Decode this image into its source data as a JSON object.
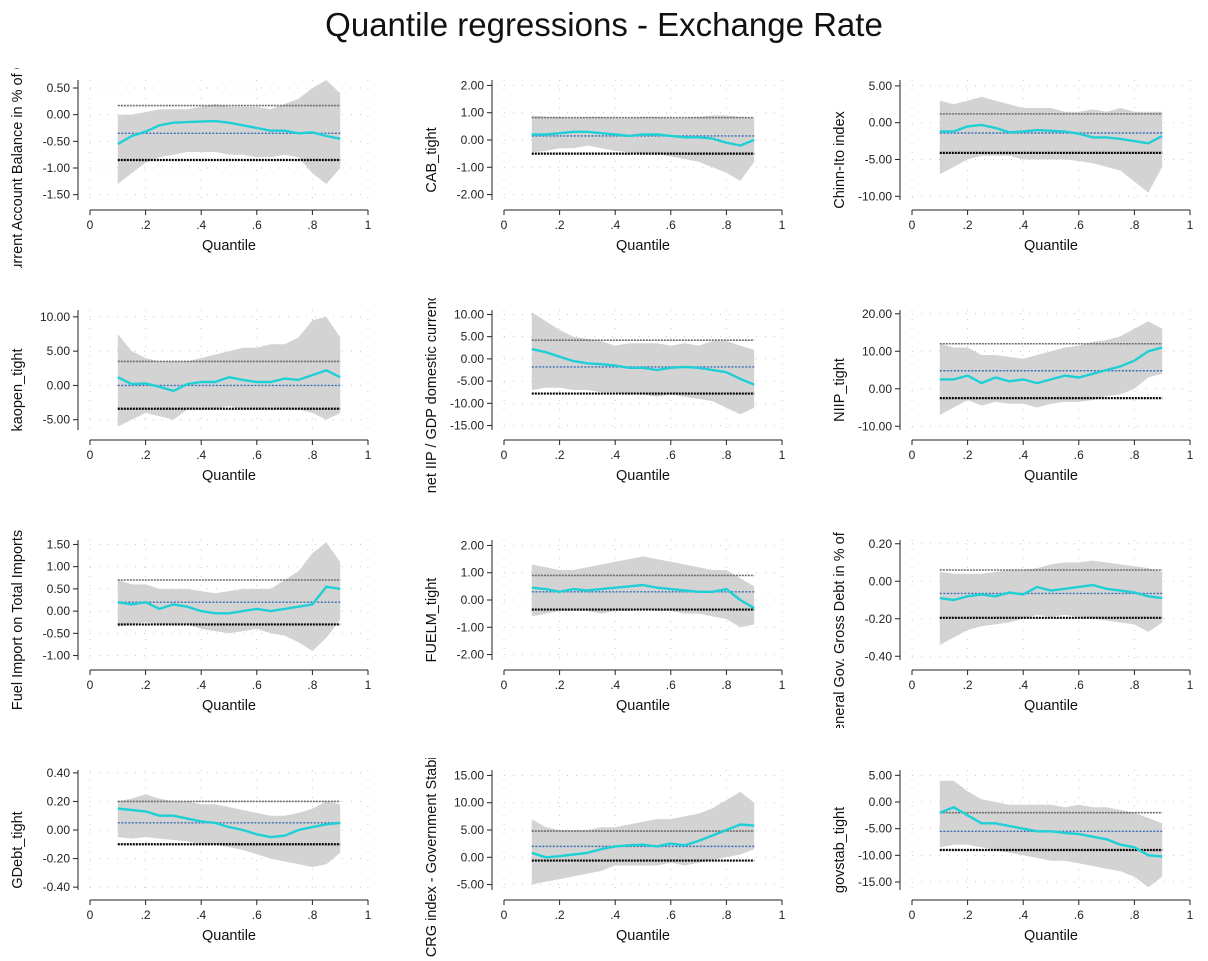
{
  "title": "Quantile regressions - Exchange Rate",
  "colors": {
    "band": "#d3d3d3",
    "estimate": "#1fcfd6",
    "ols_ci_upper": "#6e6e6e",
    "ols_coef": "#3a6fb5",
    "ols_ci_lower": "#000000",
    "grid": "#c8c8c8"
  },
  "chart_data": [
    {
      "type": "area",
      "xlabel": "Quantile",
      "ylabel": "Current Account Balance in % of GDP",
      "xticks": [
        "0",
        ".2",
        ".4",
        ".6",
        ".8",
        "1"
      ],
      "yticks": [
        "0.50",
        "0.00",
        "-0.50",
        "-1.00",
        "-1.50"
      ],
      "xlim": [
        0,
        1
      ],
      "ylim": [
        -1.6,
        0.65
      ],
      "hlines": {
        "ci_upper": 0.17,
        "coef": -0.35,
        "ci_lower": -0.85
      },
      "x": [
        0.1,
        0.15,
        0.2,
        0.25,
        0.3,
        0.35,
        0.4,
        0.45,
        0.5,
        0.55,
        0.6,
        0.65,
        0.7,
        0.75,
        0.8,
        0.85,
        0.9
      ],
      "estimate": [
        -0.55,
        -0.4,
        -0.32,
        -0.2,
        -0.15,
        -0.14,
        -0.13,
        -0.12,
        -0.15,
        -0.2,
        -0.25,
        -0.3,
        -0.3,
        -0.35,
        -0.33,
        -0.4,
        -0.45
      ],
      "band_upper": [
        0.0,
        0.0,
        0.05,
        0.1,
        0.1,
        0.1,
        0.15,
        0.2,
        0.15,
        0.15,
        0.15,
        0.1,
        0.2,
        0.3,
        0.5,
        0.65,
        0.4
      ],
      "band_lower": [
        -1.3,
        -1.1,
        -0.9,
        -0.8,
        -0.75,
        -0.7,
        -0.7,
        -0.7,
        -0.75,
        -0.75,
        -0.8,
        -0.8,
        -0.75,
        -0.8,
        -1.1,
        -1.3,
        -1.0
      ]
    },
    {
      "type": "area",
      "xlabel": "Quantile",
      "ylabel": "CAB_tight",
      "xticks": [
        "0",
        ".2",
        ".4",
        ".6",
        ".8",
        "1"
      ],
      "yticks": [
        "2.00",
        "1.00",
        "0.00",
        "-1.00",
        "-2.00"
      ],
      "xlim": [
        0,
        1
      ],
      "ylim": [
        -2.2,
        2.2
      ],
      "hlines": {
        "ci_upper": 0.82,
        "coef": 0.15,
        "ci_lower": -0.5
      },
      "x": [
        0.1,
        0.15,
        0.2,
        0.25,
        0.3,
        0.35,
        0.4,
        0.45,
        0.5,
        0.55,
        0.6,
        0.65,
        0.7,
        0.75,
        0.8,
        0.85,
        0.9
      ],
      "estimate": [
        0.2,
        0.2,
        0.25,
        0.3,
        0.3,
        0.25,
        0.2,
        0.15,
        0.2,
        0.2,
        0.15,
        0.1,
        0.1,
        0.05,
        -0.1,
        -0.2,
        0.0
      ],
      "band_upper": [
        0.9,
        0.85,
        0.85,
        0.8,
        0.85,
        0.85,
        0.8,
        0.8,
        0.85,
        0.85,
        0.8,
        0.8,
        0.85,
        0.9,
        0.9,
        0.85,
        0.8
      ],
      "band_lower": [
        -0.45,
        -0.4,
        -0.3,
        -0.3,
        -0.2,
        -0.3,
        -0.4,
        -0.45,
        -0.5,
        -0.5,
        -0.6,
        -0.7,
        -0.8,
        -1.0,
        -1.2,
        -1.5,
        -0.8
      ]
    },
    {
      "type": "area",
      "xlabel": "Quantile",
      "ylabel": "Chinn-Ito index",
      "xticks": [
        "0",
        ".2",
        ".4",
        ".6",
        ".8",
        "1"
      ],
      "yticks": [
        "5.00",
        "0.00",
        "-5.00",
        "-10.00"
      ],
      "xlim": [
        0,
        1
      ],
      "ylim": [
        -10.5,
        5.8
      ],
      "hlines": {
        "ci_upper": 1.2,
        "coef": -1.4,
        "ci_lower": -4.1
      },
      "x": [
        0.1,
        0.15,
        0.2,
        0.25,
        0.3,
        0.35,
        0.4,
        0.45,
        0.5,
        0.55,
        0.6,
        0.65,
        0.7,
        0.75,
        0.8,
        0.85,
        0.9
      ],
      "estimate": [
        -1.2,
        -1.2,
        -0.5,
        -0.3,
        -0.7,
        -1.3,
        -1.2,
        -1.0,
        -1.1,
        -1.2,
        -1.5,
        -2.0,
        -2.0,
        -2.2,
        -2.5,
        -2.8,
        -1.8
      ],
      "band_upper": [
        3.0,
        2.5,
        3.0,
        3.5,
        3.0,
        2.5,
        2.0,
        2.0,
        2.0,
        1.5,
        1.5,
        1.8,
        1.5,
        2.0,
        1.5,
        1.5,
        1.5
      ],
      "band_lower": [
        -7.0,
        -6.0,
        -5.0,
        -4.5,
        -4.5,
        -4.5,
        -5.0,
        -5.0,
        -5.0,
        -5.0,
        -5.2,
        -5.5,
        -6.0,
        -6.5,
        -8.0,
        -9.5,
        -6.0
      ]
    },
    {
      "type": "area",
      "xlabel": "Quantile",
      "ylabel": "kaopen_tight",
      "xticks": [
        "0",
        ".2",
        ".4",
        ".6",
        ".8",
        "1"
      ],
      "yticks": [
        "10.00",
        "5.00",
        "0.00",
        "-5.00"
      ],
      "xlim": [
        0,
        1
      ],
      "ylim": [
        -6.5,
        11
      ],
      "hlines": {
        "ci_upper": 3.5,
        "coef": 0.0,
        "ci_lower": -3.4
      },
      "x": [
        0.1,
        0.15,
        0.2,
        0.25,
        0.3,
        0.35,
        0.4,
        0.45,
        0.5,
        0.55,
        0.6,
        0.65,
        0.7,
        0.75,
        0.8,
        0.85,
        0.9
      ],
      "estimate": [
        1.2,
        0.2,
        0.3,
        -0.2,
        -0.8,
        0.2,
        0.5,
        0.5,
        1.2,
        0.8,
        0.5,
        0.5,
        1.0,
        0.8,
        1.5,
        2.2,
        1.2
      ],
      "band_upper": [
        7.5,
        5.0,
        4.0,
        3.5,
        3.5,
        3.5,
        4.0,
        4.5,
        5.0,
        5.5,
        5.5,
        6.0,
        6.0,
        7.0,
        9.5,
        10.0,
        7.0
      ],
      "band_lower": [
        -6.0,
        -5.0,
        -4.0,
        -4.5,
        -5.0,
        -3.5,
        -3.5,
        -3.5,
        -3.0,
        -3.5,
        -3.5,
        -3.5,
        -3.5,
        -3.5,
        -4.0,
        -5.0,
        -4.0
      ]
    },
    {
      "type": "area",
      "xlabel": "Quantile",
      "ylabel": "net IIP / GDP domestic currency",
      "xticks": [
        "0",
        ".2",
        ".4",
        ".6",
        ".8",
        "1"
      ],
      "yticks": [
        "10.00",
        "5.00",
        "0.00",
        "-5.00",
        "-10.00",
        "-15.00"
      ],
      "xlim": [
        0,
        1
      ],
      "ylim": [
        -16,
        11
      ],
      "hlines": {
        "ci_upper": 4.2,
        "coef": -1.8,
        "ci_lower": -7.8
      },
      "x": [
        0.1,
        0.15,
        0.2,
        0.25,
        0.3,
        0.35,
        0.4,
        0.45,
        0.5,
        0.55,
        0.6,
        0.65,
        0.7,
        0.75,
        0.8,
        0.85,
        0.9
      ],
      "estimate": [
        2.2,
        1.5,
        0.5,
        -0.5,
        -1.0,
        -1.2,
        -1.5,
        -2.0,
        -2.0,
        -2.5,
        -2.0,
        -1.8,
        -2.0,
        -2.5,
        -3.0,
        -4.5,
        -5.8
      ],
      "band_upper": [
        10.5,
        8.5,
        6.5,
        5.0,
        4.5,
        4.0,
        3.0,
        3.5,
        3.5,
        3.5,
        3.0,
        3.5,
        3.0,
        4.0,
        4.0,
        3.0,
        2.0
      ],
      "band_lower": [
        -7.0,
        -6.5,
        -6.5,
        -7.0,
        -7.0,
        -7.5,
        -7.5,
        -8.0,
        -8.0,
        -8.5,
        -8.0,
        -8.5,
        -9.0,
        -9.5,
        -11.0,
        -12.5,
        -11.0
      ]
    },
    {
      "type": "area",
      "xlabel": "Quantile",
      "ylabel": "NIIP_tight",
      "xticks": [
        "0",
        ".2",
        ".4",
        ".6",
        ".8",
        "1"
      ],
      "yticks": [
        "20.00",
        "10.00",
        "0.00",
        "-10.00"
      ],
      "xlim": [
        0,
        1
      ],
      "ylim": [
        -11,
        21
      ],
      "hlines": {
        "ci_upper": 12.0,
        "coef": 4.8,
        "ci_lower": -2.5
      },
      "x": [
        0.1,
        0.15,
        0.2,
        0.25,
        0.3,
        0.35,
        0.4,
        0.45,
        0.5,
        0.55,
        0.6,
        0.65,
        0.7,
        0.75,
        0.8,
        0.85,
        0.9
      ],
      "estimate": [
        2.5,
        2.5,
        3.5,
        1.5,
        3.0,
        2.0,
        2.5,
        1.5,
        2.5,
        3.5,
        3.0,
        4.0,
        5.0,
        6.0,
        7.5,
        10.0,
        11.0
      ],
      "band_upper": [
        12.0,
        11.0,
        11.0,
        9.0,
        9.0,
        8.5,
        8.0,
        9.0,
        10.0,
        11.0,
        11.5,
        12.5,
        13.0,
        14.0,
        16.0,
        18.0,
        16.0
      ],
      "band_lower": [
        -7.0,
        -5.0,
        -3.0,
        -4.5,
        -3.5,
        -4.0,
        -4.0,
        -5.0,
        -4.0,
        -3.5,
        -3.5,
        -3.0,
        -2.0,
        -1.5,
        0.0,
        3.0,
        4.0
      ]
    },
    {
      "type": "area",
      "xlabel": "Quantile",
      "ylabel": "Fuel Import on Total Imports",
      "xticks": [
        "0",
        ".2",
        ".4",
        ".6",
        ".8",
        "1"
      ],
      "yticks": [
        "1.50",
        "1.00",
        "0.50",
        "0.00",
        "-0.50",
        "-1.00"
      ],
      "xlim": [
        0,
        1
      ],
      "ylim": [
        -1.1,
        1.6
      ],
      "hlines": {
        "ci_upper": 0.7,
        "coef": 0.2,
        "ci_lower": -0.3
      },
      "x": [
        0.1,
        0.15,
        0.2,
        0.25,
        0.3,
        0.35,
        0.4,
        0.45,
        0.5,
        0.55,
        0.6,
        0.65,
        0.7,
        0.75,
        0.8,
        0.85,
        0.9
      ],
      "estimate": [
        0.2,
        0.15,
        0.2,
        0.05,
        0.15,
        0.1,
        0.0,
        -0.05,
        -0.05,
        0.0,
        0.05,
        0.0,
        0.05,
        0.1,
        0.15,
        0.55,
        0.5
      ],
      "band_upper": [
        0.7,
        0.6,
        0.6,
        0.5,
        0.5,
        0.5,
        0.45,
        0.4,
        0.45,
        0.5,
        0.5,
        0.5,
        0.7,
        0.9,
        1.3,
        1.55,
        1.1
      ],
      "band_lower": [
        -0.35,
        -0.3,
        -0.25,
        -0.3,
        -0.3,
        -0.3,
        -0.4,
        -0.45,
        -0.5,
        -0.45,
        -0.4,
        -0.5,
        -0.55,
        -0.7,
        -0.9,
        -0.6,
        -0.2
      ]
    },
    {
      "type": "area",
      "xlabel": "Quantile",
      "ylabel": "FUELM_tight",
      "xticks": [
        "0",
        ".2",
        ".4",
        ".6",
        ".8",
        "1"
      ],
      "yticks": [
        "2.00",
        "1.00",
        "0.00",
        "-1.00",
        "-2.00"
      ],
      "xlim": [
        0,
        1
      ],
      "ylim": [
        -2.2,
        2.2
      ],
      "hlines": {
        "ci_upper": 0.9,
        "coef": 0.3,
        "ci_lower": -0.35
      },
      "x": [
        0.1,
        0.15,
        0.2,
        0.25,
        0.3,
        0.35,
        0.4,
        0.45,
        0.5,
        0.55,
        0.6,
        0.65,
        0.7,
        0.75,
        0.8,
        0.85,
        0.9
      ],
      "estimate": [
        0.45,
        0.4,
        0.3,
        0.4,
        0.35,
        0.4,
        0.45,
        0.5,
        0.55,
        0.45,
        0.4,
        0.35,
        0.3,
        0.3,
        0.4,
        0.0,
        -0.3
      ],
      "band_upper": [
        1.3,
        1.2,
        1.1,
        1.1,
        1.2,
        1.3,
        1.4,
        1.5,
        1.6,
        1.5,
        1.4,
        1.3,
        1.2,
        1.1,
        1.1,
        0.8,
        0.5
      ],
      "band_lower": [
        -0.6,
        -0.5,
        -0.4,
        -0.4,
        -0.4,
        -0.5,
        -0.4,
        -0.4,
        -0.35,
        -0.4,
        -0.4,
        -0.5,
        -0.5,
        -0.6,
        -0.7,
        -1.0,
        -0.9
      ]
    },
    {
      "type": "area",
      "xlabel": "Quantile",
      "ylabel": "General Gov. Gross Debt in % of GDP",
      "xticks": [
        "0",
        ".2",
        ".4",
        ".6",
        ".8",
        "1"
      ],
      "yticks": [
        "0.20",
        "0.00",
        "-0.20",
        "-0.40"
      ],
      "xlim": [
        0,
        1
      ],
      "ylim": [
        -0.42,
        0.22
      ],
      "hlines": {
        "ci_upper": 0.06,
        "coef": -0.065,
        "ci_lower": -0.195
      },
      "x": [
        0.1,
        0.15,
        0.2,
        0.25,
        0.3,
        0.35,
        0.4,
        0.45,
        0.5,
        0.55,
        0.6,
        0.65,
        0.7,
        0.75,
        0.8,
        0.85,
        0.9
      ],
      "estimate": [
        -0.09,
        -0.1,
        -0.08,
        -0.07,
        -0.08,
        -0.06,
        -0.07,
        -0.03,
        -0.05,
        -0.04,
        -0.03,
        -0.02,
        -0.04,
        -0.05,
        -0.06,
        -0.08,
        -0.09
      ],
      "band_upper": [
        0.05,
        0.04,
        0.04,
        0.04,
        0.05,
        0.06,
        0.06,
        0.07,
        0.09,
        0.1,
        0.1,
        0.11,
        0.1,
        0.09,
        0.08,
        0.07,
        0.05
      ],
      "band_lower": [
        -0.34,
        -0.3,
        -0.26,
        -0.24,
        -0.23,
        -0.22,
        -0.2,
        -0.18,
        -0.19,
        -0.18,
        -0.19,
        -0.2,
        -0.21,
        -0.22,
        -0.23,
        -0.27,
        -0.22
      ]
    },
    {
      "type": "area",
      "xlabel": "Quantile",
      "ylabel": "GDebt_tight",
      "xticks": [
        "0",
        ".2",
        ".4",
        ".6",
        ".8",
        "1"
      ],
      "yticks": [
        "0.40",
        "0.20",
        "0.00",
        "-0.20",
        "-0.40"
      ],
      "xlim": [
        0,
        1
      ],
      "ylim": [
        -0.42,
        0.42
      ],
      "hlines": {
        "ci_upper": 0.2,
        "coef": 0.05,
        "ci_lower": -0.1
      },
      "x": [
        0.1,
        0.15,
        0.2,
        0.25,
        0.3,
        0.35,
        0.4,
        0.45,
        0.5,
        0.55,
        0.6,
        0.65,
        0.7,
        0.75,
        0.8,
        0.85,
        0.9
      ],
      "estimate": [
        0.15,
        0.14,
        0.13,
        0.1,
        0.1,
        0.08,
        0.06,
        0.05,
        0.02,
        0.0,
        -0.03,
        -0.05,
        -0.04,
        0.0,
        0.02,
        0.04,
        0.05
      ],
      "band_upper": [
        0.2,
        0.22,
        0.25,
        0.22,
        0.2,
        0.2,
        0.18,
        0.18,
        0.16,
        0.14,
        0.12,
        0.1,
        0.1,
        0.12,
        0.15,
        0.2,
        0.18
      ],
      "band_lower": [
        -0.05,
        -0.06,
        -0.05,
        -0.06,
        -0.07,
        -0.08,
        -0.1,
        -0.1,
        -0.12,
        -0.14,
        -0.17,
        -0.2,
        -0.22,
        -0.24,
        -0.26,
        -0.24,
        -0.16
      ]
    },
    {
      "type": "area",
      "xlabel": "Quantile",
      "ylabel": "ICRG index - Government Stability",
      "xticks": [
        "0",
        ".2",
        ".4",
        ".6",
        ".8",
        "1"
      ],
      "yticks": [
        "15.00",
        "10.00",
        "5.00",
        "0.00",
        "-5.00"
      ],
      "xlim": [
        0,
        1
      ],
      "ylim": [
        -6,
        16
      ],
      "hlines": {
        "ci_upper": 4.8,
        "coef": 2.0,
        "ci_lower": -0.6
      },
      "x": [
        0.1,
        0.15,
        0.2,
        0.25,
        0.3,
        0.35,
        0.4,
        0.45,
        0.5,
        0.55,
        0.6,
        0.65,
        0.7,
        0.75,
        0.8,
        0.85,
        0.9
      ],
      "estimate": [
        0.8,
        0.0,
        0.2,
        0.5,
        0.8,
        1.5,
        2.0,
        2.2,
        2.3,
        2.0,
        2.5,
        2.2,
        3.0,
        4.0,
        5.0,
        6.0,
        5.8
      ],
      "band_upper": [
        7.0,
        5.5,
        5.0,
        5.0,
        5.0,
        5.5,
        5.5,
        6.0,
        6.5,
        7.0,
        7.0,
        7.5,
        8.0,
        9.0,
        10.5,
        12.0,
        10.0
      ],
      "band_lower": [
        -5.0,
        -4.5,
        -4.0,
        -3.5,
        -3.0,
        -2.5,
        -1.5,
        -1.5,
        -1.5,
        -1.5,
        -1.0,
        -1.5,
        -1.0,
        -0.5,
        0.0,
        0.5,
        1.5
      ]
    },
    {
      "type": "area",
      "xlabel": "Quantile",
      "ylabel": "govstab_tight",
      "xticks": [
        "0",
        ".2",
        ".4",
        ".6",
        ".8",
        "1"
      ],
      "yticks": [
        "5.00",
        "0.00",
        "-5.00",
        "-10.00",
        "-15.00"
      ],
      "xlim": [
        0,
        1
      ],
      "ylim": [
        -16.5,
        6
      ],
      "hlines": {
        "ci_upper": -2.0,
        "coef": -5.5,
        "ci_lower": -9.0
      },
      "x": [
        0.1,
        0.15,
        0.2,
        0.25,
        0.3,
        0.35,
        0.4,
        0.45,
        0.5,
        0.55,
        0.6,
        0.65,
        0.7,
        0.75,
        0.8,
        0.85,
        0.9
      ],
      "estimate": [
        -2.0,
        -1.0,
        -2.5,
        -4.0,
        -4.0,
        -4.5,
        -5.0,
        -5.5,
        -5.5,
        -5.8,
        -6.0,
        -6.5,
        -7.0,
        -8.0,
        -8.5,
        -10.0,
        -10.2
      ],
      "band_upper": [
        4.0,
        4.0,
        2.0,
        0.5,
        0.0,
        -0.5,
        -0.5,
        -0.5,
        -0.5,
        -1.0,
        -0.5,
        -1.0,
        -1.0,
        -1.5,
        -2.0,
        -3.0,
        -4.0
      ],
      "band_lower": [
        -8.5,
        -8.0,
        -8.0,
        -8.5,
        -9.0,
        -9.5,
        -10.0,
        -10.5,
        -11.0,
        -11.0,
        -11.5,
        -12.0,
        -12.5,
        -13.0,
        -14.0,
        -16.0,
        -14.0
      ]
    }
  ]
}
